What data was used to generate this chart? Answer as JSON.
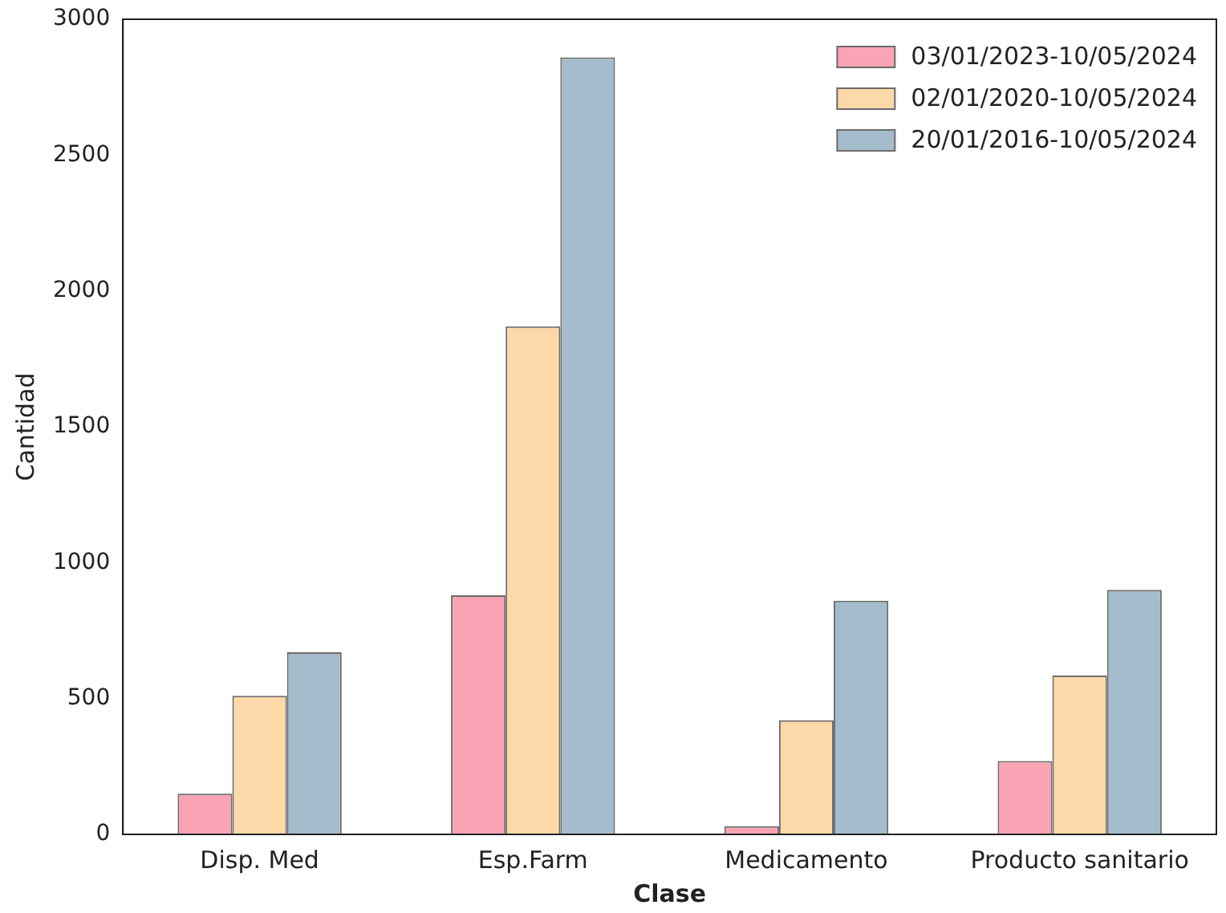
{
  "chart_data": {
    "type": "bar",
    "xlabel": "Clase",
    "ylabel": "Cantidad",
    "categories": [
      "Disp. Med",
      "Esp.Farm",
      "Medicamento",
      "Producto sanitario"
    ],
    "series": [
      {
        "name": "03/01/2023-10/05/2024",
        "color": "#f9a3b5",
        "values": [
          150,
          880,
          30,
          270
        ]
      },
      {
        "name": "02/01/2020-10/05/2024",
        "color": "#fdd8a8",
        "values": [
          510,
          1870,
          420,
          585
        ]
      },
      {
        "name": "20/01/2016-10/05/2024",
        "color": "#a4bccb",
        "values": [
          670,
          2860,
          860,
          900
        ]
      }
    ],
    "ylim": [
      0,
      3000
    ],
    "yticks": [
      0,
      500,
      1000,
      1500,
      2000,
      2500,
      3000
    ],
    "grid": false,
    "legend": "top right"
  }
}
